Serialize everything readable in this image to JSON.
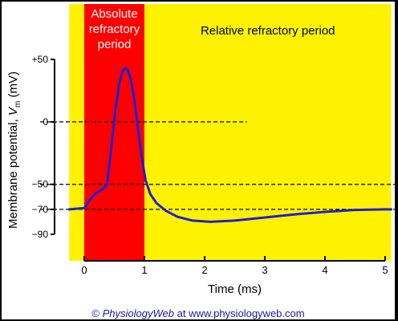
{
  "chart_data": {
    "type": "line",
    "xlabel": "Time (ms)",
    "ylabel": "Membrane potential, V",
    "ylabel_subscript": "m",
    "ylabel_unit": "(mV)",
    "xlim": [
      0,
      5
    ],
    "ylim": [
      -90,
      50
    ],
    "x_ticks": [
      {
        "value": 0,
        "label": "0"
      },
      {
        "value": 1,
        "label": "1"
      },
      {
        "value": 2,
        "label": "2"
      },
      {
        "value": 3,
        "label": "3"
      },
      {
        "value": 4,
        "label": "4"
      },
      {
        "value": 5,
        "label": "5"
      }
    ],
    "y_ticks": [
      {
        "value": 50,
        "label": "+50"
      },
      {
        "value": 0,
        "label": "0"
      },
      {
        "value": -50,
        "label": "−50"
      },
      {
        "value": -70,
        "label": "−70"
      },
      {
        "value": -90,
        "label": "−90"
      }
    ],
    "reference_lines": [
      {
        "y": 0,
        "x_end": 2.7
      },
      {
        "y": -50,
        "x_end": 5.2
      },
      {
        "y": -70,
        "x_end": 5.2
      }
    ],
    "regions": [
      {
        "x": [
          -0.25,
          0.0
        ],
        "color": "#fff200",
        "label_lines": []
      },
      {
        "x": [
          0.0,
          1.0
        ],
        "color": "#ff0000",
        "label_lines": [
          "Absolute",
          "refractory",
          "period"
        ]
      },
      {
        "x": [
          1.0,
          5.1
        ],
        "color": "#fff200",
        "label_lines": [
          "Relative refractory period"
        ]
      }
    ],
    "series": [
      {
        "color": "#1f1fd6",
        "points": [
          [
            -0.25,
            -70
          ],
          [
            0.0,
            -69
          ],
          [
            0.1,
            -62
          ],
          [
            0.2,
            -57
          ],
          [
            0.3,
            -54
          ],
          [
            0.38,
            -50
          ],
          [
            0.45,
            -20
          ],
          [
            0.52,
            10
          ],
          [
            0.58,
            30
          ],
          [
            0.63,
            40
          ],
          [
            0.68,
            43
          ],
          [
            0.73,
            41
          ],
          [
            0.78,
            33
          ],
          [
            0.84,
            15
          ],
          [
            0.9,
            -8
          ],
          [
            0.96,
            -30
          ],
          [
            1.02,
            -47
          ],
          [
            1.1,
            -58
          ],
          [
            1.2,
            -65
          ],
          [
            1.35,
            -71
          ],
          [
            1.55,
            -76
          ],
          [
            1.8,
            -79
          ],
          [
            2.1,
            -80
          ],
          [
            2.5,
            -79
          ],
          [
            3.0,
            -76.5
          ],
          [
            3.5,
            -74
          ],
          [
            4.0,
            -72
          ],
          [
            4.5,
            -70.5
          ],
          [
            5.0,
            -70
          ],
          [
            5.1,
            -70
          ]
        ]
      }
    ]
  },
  "credit": {
    "symbol": "©",
    "site_name": "PhysiologyWeb",
    "rest": " at www.physiologyweb.com"
  }
}
